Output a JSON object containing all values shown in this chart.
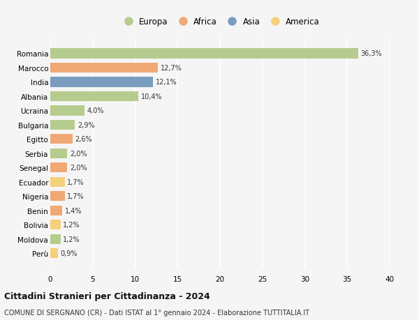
{
  "countries": [
    "Romania",
    "Marocco",
    "India",
    "Albania",
    "Ucraina",
    "Bulgaria",
    "Egitto",
    "Serbia",
    "Senegal",
    "Ecuador",
    "Nigeria",
    "Benin",
    "Bolivia",
    "Moldova",
    "Perù"
  ],
  "values": [
    36.3,
    12.7,
    12.1,
    10.4,
    4.0,
    2.9,
    2.6,
    2.0,
    2.0,
    1.7,
    1.7,
    1.4,
    1.2,
    1.2,
    0.9
  ],
  "labels": [
    "36,3%",
    "12,7%",
    "12,1%",
    "10,4%",
    "4,0%",
    "2,9%",
    "2,6%",
    "2,0%",
    "2,0%",
    "1,7%",
    "1,7%",
    "1,4%",
    "1,2%",
    "1,2%",
    "0,9%"
  ],
  "continents": [
    "Europa",
    "Africa",
    "Asia",
    "Europa",
    "Europa",
    "Europa",
    "Africa",
    "Europa",
    "Africa",
    "America",
    "Africa",
    "Africa",
    "America",
    "Europa",
    "America"
  ],
  "continent_colors": {
    "Europa": "#b5cc8e",
    "Africa": "#f0a875",
    "Asia": "#7a9cbf",
    "America": "#f5d07a"
  },
  "legend_order": [
    "Europa",
    "Africa",
    "Asia",
    "America"
  ],
  "title": "Cittadini Stranieri per Cittadinanza - 2024",
  "subtitle": "COMUNE DI SERGNANO (CR) - Dati ISTAT al 1° gennaio 2024 - Elaborazione TUTTITALIA.IT",
  "xlim": [
    0,
    40
  ],
  "xticks": [
    0,
    5,
    10,
    15,
    20,
    25,
    30,
    35,
    40
  ],
  "background_color": "#f5f5f5",
  "grid_color": "#ffffff",
  "bar_height": 0.7
}
